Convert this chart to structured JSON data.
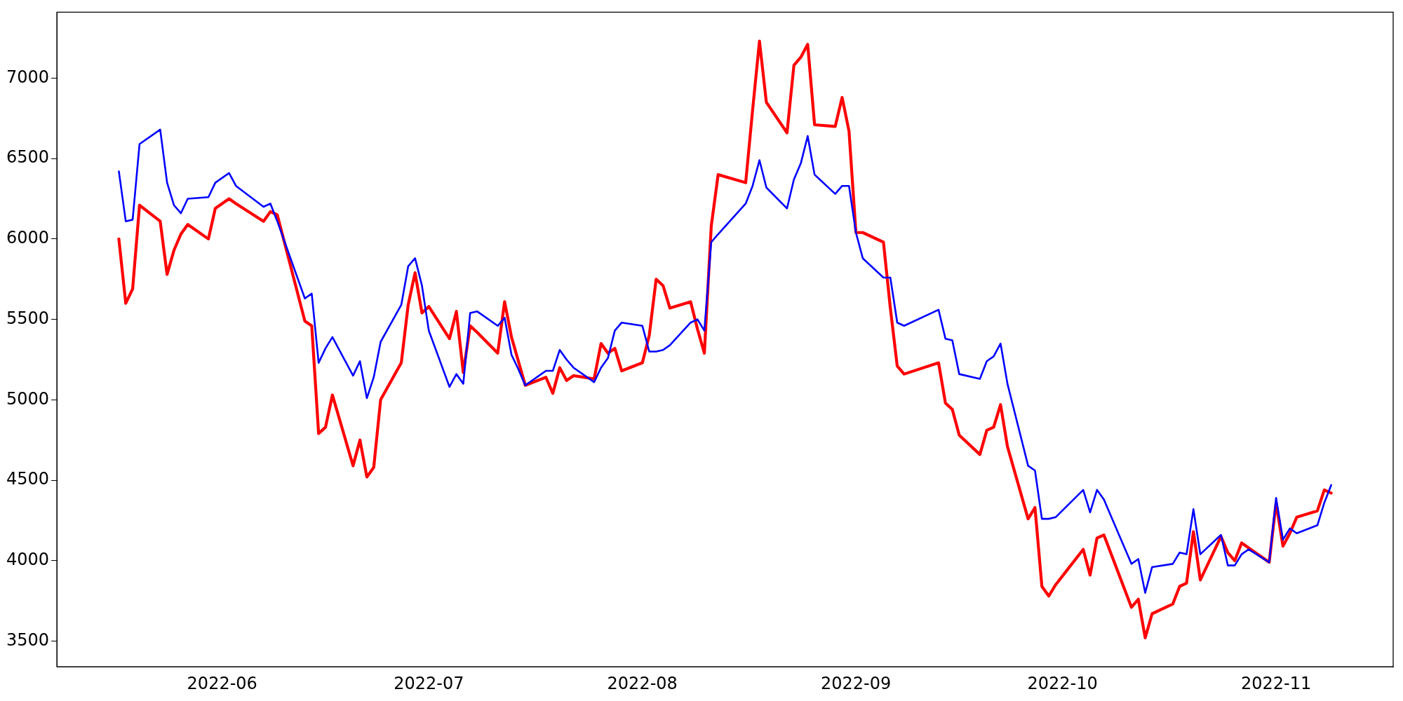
{
  "chart_data": {
    "type": "line",
    "x": [
      "2022-05-17",
      "2022-05-18",
      "2022-05-19",
      "2022-05-20",
      "2022-05-23",
      "2022-05-24",
      "2022-05-25",
      "2022-05-26",
      "2022-05-27",
      "2022-05-30",
      "2022-05-31",
      "2022-06-02",
      "2022-06-03",
      "2022-06-07",
      "2022-06-08",
      "2022-06-09",
      "2022-06-13",
      "2022-06-14",
      "2022-06-15",
      "2022-06-16",
      "2022-06-17",
      "2022-06-20",
      "2022-06-21",
      "2022-06-22",
      "2022-06-23",
      "2022-06-24",
      "2022-06-27",
      "2022-06-28",
      "2022-06-29",
      "2022-06-30",
      "2022-07-01",
      "2022-07-04",
      "2022-07-05",
      "2022-07-06",
      "2022-07-07",
      "2022-07-08",
      "2022-07-11",
      "2022-07-12",
      "2022-07-13",
      "2022-07-14",
      "2022-07-15",
      "2022-07-18",
      "2022-07-19",
      "2022-07-20",
      "2022-07-21",
      "2022-07-22",
      "2022-07-25",
      "2022-07-26",
      "2022-07-27",
      "2022-07-28",
      "2022-07-29",
      "2022-08-01",
      "2022-08-02",
      "2022-08-03",
      "2022-08-04",
      "2022-08-05",
      "2022-08-08",
      "2022-08-09",
      "2022-08-10",
      "2022-08-11",
      "2022-08-12",
      "2022-08-16",
      "2022-08-17",
      "2022-08-18",
      "2022-08-19",
      "2022-08-22",
      "2022-08-23",
      "2022-08-24",
      "2022-08-25",
      "2022-08-26",
      "2022-08-29",
      "2022-08-30",
      "2022-08-31",
      "2022-09-01",
      "2022-09-02",
      "2022-09-05",
      "2022-09-06",
      "2022-09-07",
      "2022-09-08",
      "2022-09-13",
      "2022-09-14",
      "2022-09-15",
      "2022-09-16",
      "2022-09-19",
      "2022-09-20",
      "2022-09-21",
      "2022-09-22",
      "2022-09-23",
      "2022-09-26",
      "2022-09-27",
      "2022-09-28",
      "2022-09-29",
      "2022-09-30",
      "2022-10-04",
      "2022-10-05",
      "2022-10-06",
      "2022-10-07",
      "2022-10-11",
      "2022-10-12",
      "2022-10-13",
      "2022-10-14",
      "2022-10-17",
      "2022-10-18",
      "2022-10-19",
      "2022-10-20",
      "2022-10-21",
      "2022-10-24",
      "2022-10-25",
      "2022-10-26",
      "2022-10-27",
      "2022-10-28",
      "2022-10-31",
      "2022-11-01",
      "2022-11-02",
      "2022-11-03",
      "2022-11-04",
      "2022-11-07",
      "2022-11-08",
      "2022-11-09"
    ],
    "series": [
      {
        "color": "#0000ff",
        "values": [
          6420,
          6110,
          6120,
          6590,
          6680,
          6350,
          6210,
          6160,
          6250,
          6260,
          6350,
          6410,
          6330,
          6200,
          6220,
          6110,
          5630,
          5660,
          5230,
          5320,
          5390,
          5150,
          5240,
          5010,
          5140,
          5360,
          5590,
          5830,
          5880,
          5710,
          5430,
          5080,
          5160,
          5100,
          5540,
          5550,
          5460,
          5510,
          5280,
          5190,
          5090,
          5180,
          5180,
          5310,
          5250,
          5200,
          5110,
          5200,
          5260,
          5430,
          5480,
          5460,
          5300,
          5300,
          5310,
          5340,
          5480,
          5500,
          5430,
          5980,
          6030,
          6220,
          6330,
          6490,
          6320,
          6190,
          6370,
          6470,
          6640,
          6400,
          6280,
          6330,
          6330,
          6040,
          5880,
          5760,
          5760,
          5480,
          5460,
          5560,
          5380,
          5370,
          5160,
          5130,
          5240,
          5270,
          5350,
          5100,
          4590,
          4560,
          4260,
          4260,
          4270,
          4440,
          4300,
          4440,
          4380,
          3980,
          4010,
          3800,
          3960,
          3980,
          4050,
          4040,
          4320,
          4040,
          4160,
          3970,
          3970,
          4040,
          4070,
          3990,
          4390,
          4130,
          4200,
          4170,
          4220,
          4360,
          4470
        ]
      },
      {
        "color": "#ff0000",
        "values": [
          6000,
          5600,
          5690,
          6210,
          6110,
          5780,
          5930,
          6030,
          6090,
          6000,
          6190,
          6250,
          6220,
          6110,
          6170,
          6150,
          5490,
          5460,
          4790,
          4830,
          5030,
          4590,
          4750,
          4520,
          4580,
          5000,
          5230,
          5590,
          5790,
          5540,
          5580,
          5380,
          5550,
          5170,
          5460,
          5420,
          5290,
          5610,
          5390,
          5240,
          5090,
          5140,
          5040,
          5200,
          5120,
          5150,
          5130,
          5350,
          5290,
          5320,
          5180,
          5230,
          5400,
          5750,
          5710,
          5570,
          5610,
          5440,
          5290,
          6080,
          6400,
          6350,
          6800,
          7230,
          6850,
          6660,
          7080,
          7130,
          7210,
          6710,
          6700,
          6880,
          6670,
          6040,
          6040,
          5980,
          5570,
          5210,
          5160,
          5230,
          4980,
          4940,
          4780,
          4660,
          4810,
          4830,
          4970,
          4710,
          4260,
          4330,
          3840,
          3780,
          3850,
          4070,
          3910,
          4140,
          4160,
          3710,
          3760,
          3520,
          3670,
          3730,
          3840,
          3860,
          4180,
          3880,
          4150,
          4050,
          4000,
          4110,
          4080,
          3990,
          4360,
          4090,
          4170,
          4270,
          4310,
          4440,
          4420
        ]
      }
    ],
    "xlim": [
      "2022-05-08",
      "2022-11-18"
    ],
    "xticks": [
      "2022-06",
      "2022-07",
      "2022-08",
      "2022-09",
      "2022-10",
      "2022-11"
    ],
    "ylim": [
      3340,
      7410
    ],
    "yticks": [
      3500,
      4000,
      4500,
      5000,
      5500,
      6000,
      6500,
      7000
    ]
  }
}
